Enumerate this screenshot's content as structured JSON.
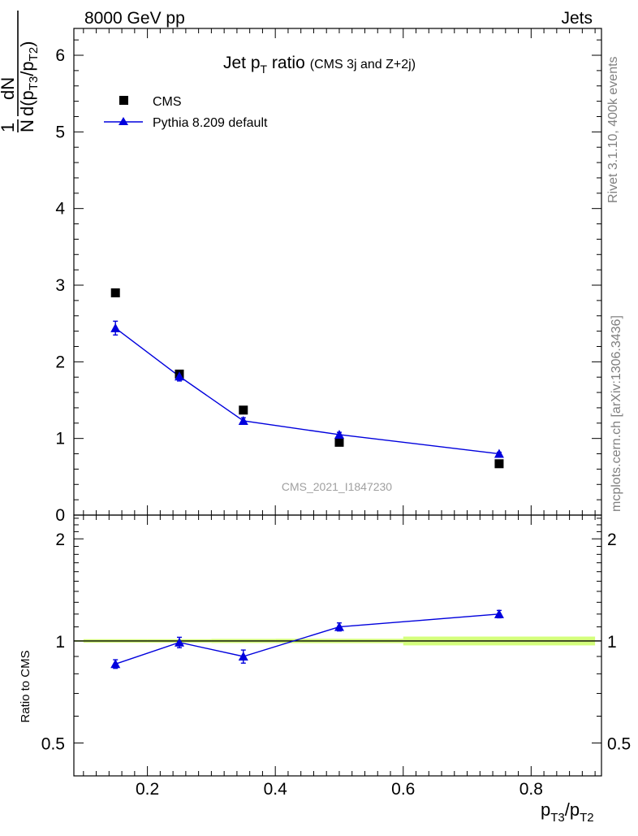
{
  "header": {
    "left": "8000 GeV pp",
    "right": "Jets"
  },
  "side_labels": {
    "rivet": "Rivet 3.1.10,  400k events",
    "mcplots": "mcplots.cern.ch [arXiv:1306.3436]"
  },
  "watermark": "CMS_2021_I1847230",
  "chart_data": [
    {
      "type": "scatter",
      "title": {
        "main": "Jet p",
        "sub": "T",
        "rest": " ratio",
        "small": "(CMS 3j and Z+2j)"
      },
      "ylabel": {
        "frac_one": "1",
        "frac_N": "N",
        "dN": "dN",
        "d": "d(p",
        "s1": "T3",
        "mid": "/p",
        "s2": "T2",
        "close": ")"
      },
      "xlim": [
        0.085,
        0.91
      ],
      "ylim": [
        0,
        6.35
      ],
      "yticks": [
        {
          "v": 0,
          "label": "0"
        },
        {
          "v": 1,
          "label": "1"
        },
        {
          "v": 2,
          "label": "2"
        },
        {
          "v": 3,
          "label": "3"
        },
        {
          "v": 4,
          "label": "4"
        },
        {
          "v": 5,
          "label": "5"
        },
        {
          "v": 6,
          "label": "6"
        }
      ],
      "legend": {
        "placement": "top-left",
        "entries": [
          "CMS",
          "Pythia 8.209 default"
        ]
      },
      "x": [
        0.15,
        0.25,
        0.35,
        0.5,
        0.75
      ],
      "series": [
        {
          "name": "CMS",
          "marker": "square",
          "color": "#000000",
          "values": [
            2.9,
            1.84,
            1.37,
            0.95,
            0.67
          ]
        },
        {
          "name": "Pythia 8.209 default",
          "marker": "triangle",
          "color": "#0000dd",
          "values": [
            2.44,
            1.81,
            1.23,
            1.05,
            0.8
          ],
          "errors": [
            0.09,
            0.06,
            0.04,
            0.03,
            0.02
          ]
        }
      ]
    },
    {
      "type": "scatter",
      "ylabel": "Ratio to CMS",
      "xlabel": {
        "p1": "p",
        "s1": "T3",
        "mid": "/p",
        "s2": "T2"
      },
      "xlim": [
        0.085,
        0.91
      ],
      "ylim": [
        0.4,
        2.35
      ],
      "scale": "log",
      "xticks": [
        {
          "v": 0.2,
          "label": "0.2"
        },
        {
          "v": 0.4,
          "label": "0.4"
        },
        {
          "v": 0.6,
          "label": "0.6"
        },
        {
          "v": 0.8,
          "label": "0.8"
        }
      ],
      "yticks": [
        {
          "v": 0.5,
          "label": "0.5"
        },
        {
          "v": 1,
          "label": "1"
        },
        {
          "v": 2,
          "label": "2"
        }
      ],
      "x": [
        0.15,
        0.25,
        0.35,
        0.5,
        0.75
      ],
      "band": {
        "color": "#ccff66",
        "edges": [
          0.1,
          0.2,
          0.3,
          0.4,
          0.6,
          0.9
        ],
        "half_widths": [
          0.012,
          0.012,
          0.014,
          0.015,
          0.03
        ]
      },
      "reference": 1,
      "series": [
        {
          "name": "Pythia 8.209 default",
          "marker": "triangle",
          "color": "#0000dd",
          "values": [
            0.855,
            0.99,
            0.9,
            1.1,
            1.2
          ],
          "errors": [
            0.025,
            0.035,
            0.04,
            0.03,
            0.03
          ]
        }
      ]
    }
  ]
}
